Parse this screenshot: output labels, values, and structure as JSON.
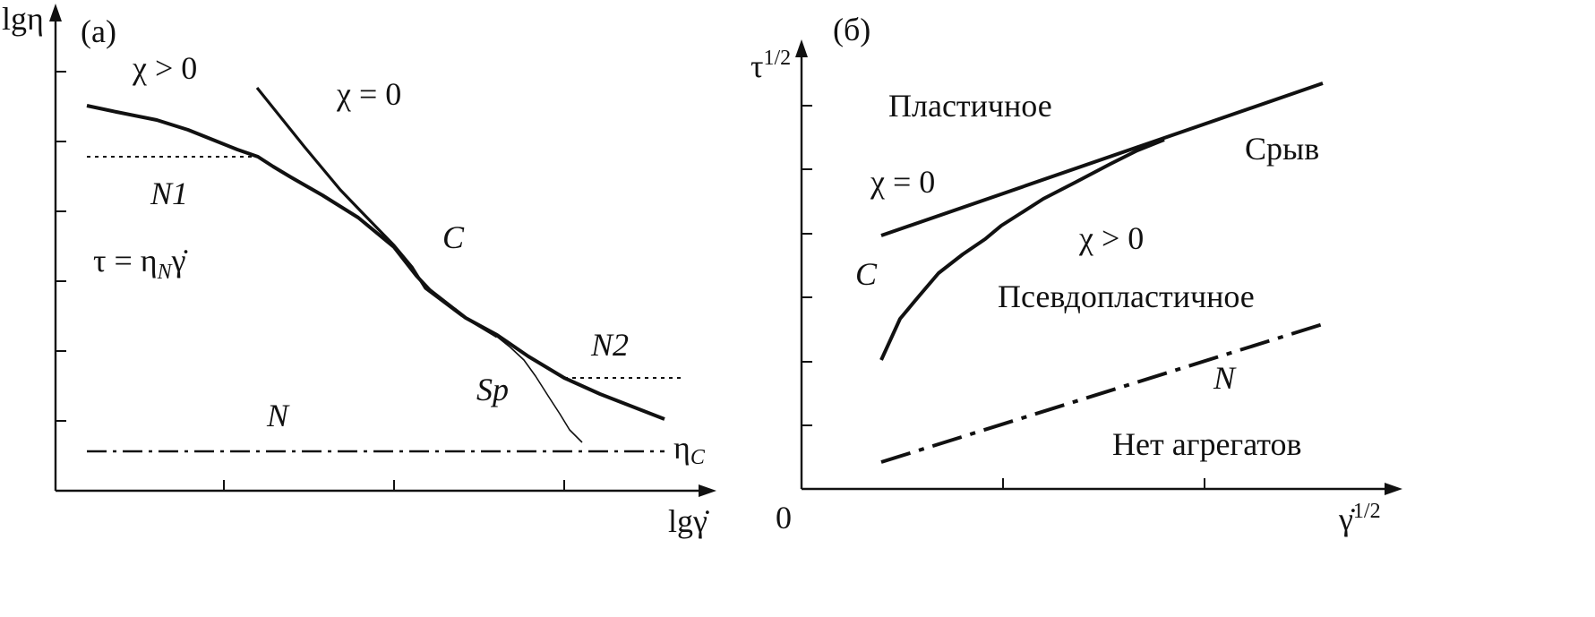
{
  "panel_a": {
    "tag": "(а)",
    "y_axis_label": "lgη",
    "x_axis_label": "lgγ̇",
    "chi_pos": "χ > 0",
    "chi_zero": "χ = 0",
    "n1_label": "N1",
    "equation_lhs": "τ = η",
    "equation_sub": "N",
    "equation_rhs": "γ̇",
    "c_label": "C",
    "n2_label": "N2",
    "sp_label": "Sp",
    "n_label": "N",
    "eta_c_main": "η",
    "eta_c_sub": "C"
  },
  "panel_b": {
    "tag": "(б)",
    "y_axis_label": "τ",
    "y_axis_sup": "1/2",
    "x_axis_label": "γ̇",
    "x_axis_sup": "1/2",
    "origin_label": "0",
    "plastic_label": "Пластичное",
    "break_label": "Срыв",
    "chi_zero": "χ = 0",
    "chi_pos": "χ > 0",
    "c_label": "C",
    "pseudo_label": "Псевдопластичное",
    "n_label": "N",
    "no_agg_label": "Нет агрегатов"
  },
  "colors": {
    "ink": "#111111",
    "background": "#ffffff"
  }
}
